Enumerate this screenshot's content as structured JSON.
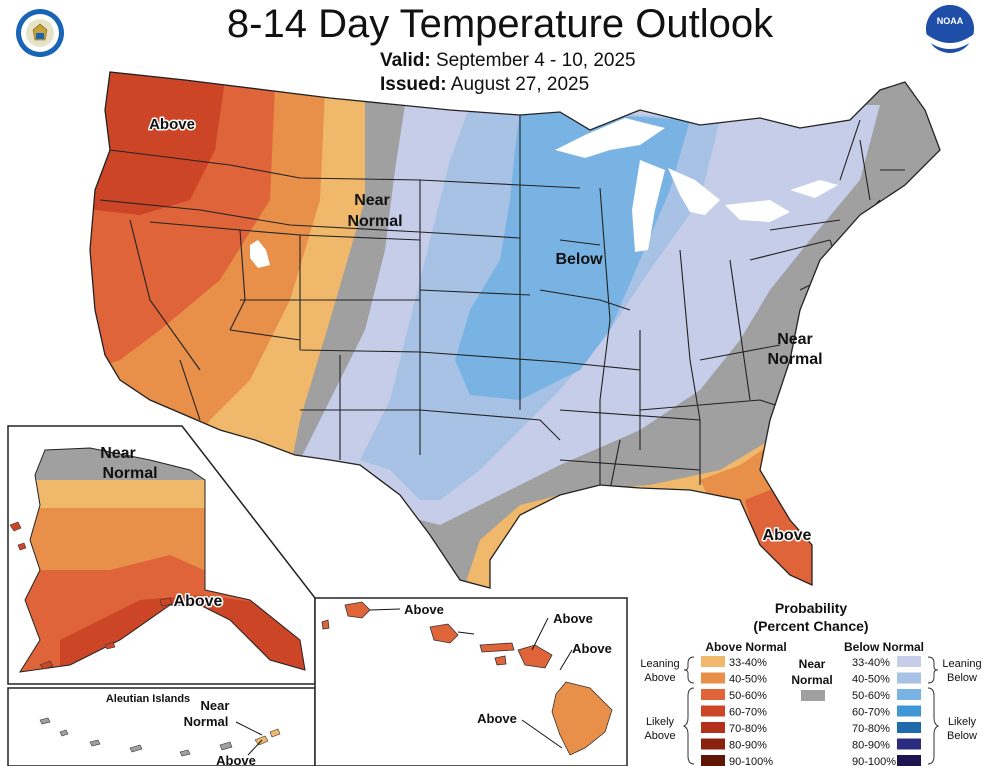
{
  "title": "8-14 Day Temperature Outlook",
  "valid_label": "Valid:",
  "valid_value": "September 4 - 10, 2025",
  "issued_label": "Issued:",
  "issued_value": "August 27, 2025",
  "map_labels": {
    "conus_northwest": "Above",
    "conus_north_central_line1": "Near",
    "conus_north_central_line2": "Normal",
    "conus_midwest": "Below",
    "conus_east_line1": "Near",
    "conus_east_line2": "Normal",
    "conus_florida": "Above",
    "alaska_north_line1": "Near",
    "alaska_north_line2": "Normal",
    "alaska_south": "Above",
    "hawaii_kauai": "Above",
    "hawaii_oahu": "Above",
    "hawaii_maui": "Above",
    "hawaii_big_island": "Above",
    "aleutian_title": "Aleutian Islands",
    "aleutian_near_line1": "Near",
    "aleutian_near_line2": "Normal",
    "aleutian_above": "Above"
  },
  "legend": {
    "title_line1": "Probability",
    "title_line2": "(Percent Chance)",
    "above_header": "Above Normal",
    "below_header": "Below Normal",
    "near_line1": "Near",
    "near_line2": "Normal",
    "near_color": "#a0a0a0",
    "leaning_above_line1": "Leaning",
    "leaning_above_line2": "Above",
    "likely_above_line1": "Likely",
    "likely_above_line2": "Above",
    "leaning_below_line1": "Leaning",
    "leaning_below_line2": "Below",
    "likely_below_line1": "Likely",
    "likely_below_line2": "Below",
    "above": [
      {
        "label": "33-40%",
        "color": "#f0b86b"
      },
      {
        "label": "40-50%",
        "color": "#e8904a"
      },
      {
        "label": "50-60%",
        "color": "#e0643a"
      },
      {
        "label": "60-70%",
        "color": "#cc4526"
      },
      {
        "label": "70-80%",
        "color": "#b3301a"
      },
      {
        "label": "80-90%",
        "color": "#8a2210"
      },
      {
        "label": "90-100%",
        "color": "#5e1505"
      }
    ],
    "below": [
      {
        "label": "33-40%",
        "color": "#c6cde9"
      },
      {
        "label": "40-50%",
        "color": "#a7c2e4"
      },
      {
        "label": "50-60%",
        "color": "#78b3e3"
      },
      {
        "label": "60-70%",
        "color": "#3f98d4"
      },
      {
        "label": "70-80%",
        "color": "#1f6aaa"
      },
      {
        "label": "80-90%",
        "color": "#2a2d7f"
      },
      {
        "label": "90-100%",
        "color": "#1d1550"
      }
    ]
  },
  "colors": {
    "near": "#a0a0a0",
    "lean_above": "#f0b86b",
    "above_40": "#e8904a",
    "above_50": "#e0643a",
    "above_60": "#cc4526",
    "above_70": "#b3301a",
    "lean_below": "#c6cde9",
    "below_40": "#a7c2e4",
    "below_50": "#78b3e3",
    "border": "#222222"
  },
  "logos": {
    "left": "commerce-seal-icon",
    "right": "noaa-logo-icon"
  }
}
